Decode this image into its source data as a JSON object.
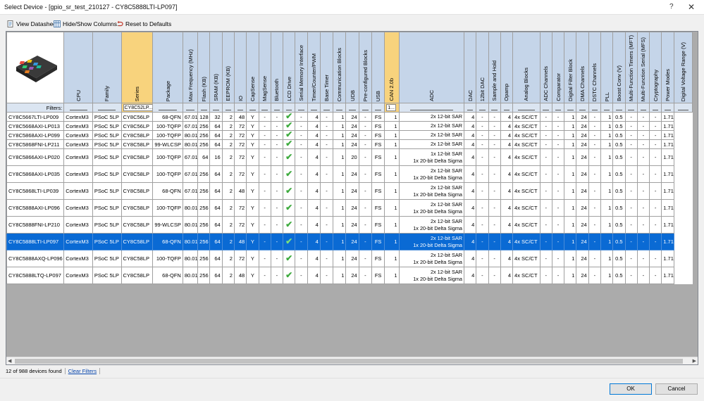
{
  "window": {
    "title": "Select Device - [gpio_sr_test_210127 - CY8C5888LTI-LP097]",
    "help": "?",
    "close": "✕"
  },
  "toolbar": {
    "view_datasheet": "View Datasheet",
    "hide_show": "Hide/Show Columns...",
    "reset": "Reset to Defaults"
  },
  "columns": [
    {
      "label": "",
      "highlight": false
    },
    {
      "label": "CPU",
      "highlight": false
    },
    {
      "label": "Family",
      "highlight": false
    },
    {
      "label": "Series",
      "highlight": true
    },
    {
      "label": "Package",
      "highlight": false
    },
    {
      "label": "Max Frequency (MHz)",
      "highlight": false
    },
    {
      "label": "Flash (KB)",
      "highlight": false
    },
    {
      "label": "SRAM (KB)",
      "highlight": false
    },
    {
      "label": "EEPROM (KB)",
      "highlight": false
    },
    {
      "label": "IO",
      "highlight": false
    },
    {
      "label": "CapSense",
      "highlight": false
    },
    {
      "label": "MagSense",
      "highlight": false
    },
    {
      "label": "Bluetooth",
      "highlight": false
    },
    {
      "label": "LCD Drive",
      "highlight": false
    },
    {
      "label": "Serial Memory Interface",
      "highlight": false
    },
    {
      "label": "Timer/Counter/PWM",
      "highlight": false
    },
    {
      "label": "Base Timer",
      "highlight": false
    },
    {
      "label": "Communication Blocks",
      "highlight": false
    },
    {
      "label": "UDB",
      "highlight": false
    },
    {
      "label": "Pre-configured Blocks",
      "highlight": false
    },
    {
      "label": "USB",
      "highlight": false
    },
    {
      "label": "CAN 2.0b",
      "highlight": true
    },
    {
      "label": "ADC",
      "highlight": false
    },
    {
      "label": "DAC",
      "highlight": false
    },
    {
      "label": "12bit DAC",
      "highlight": false
    },
    {
      "label": "Sample and Hold",
      "highlight": false
    },
    {
      "label": "Opamp",
      "highlight": false
    },
    {
      "label": "Analog Blocks",
      "highlight": false
    },
    {
      "label": "ADC Channels",
      "highlight": false
    },
    {
      "label": "Comparator",
      "highlight": false
    },
    {
      "label": "Digital Filter Block",
      "highlight": false
    },
    {
      "label": "DMA Channels",
      "highlight": false
    },
    {
      "label": "DSTC Channels",
      "highlight": false
    },
    {
      "label": "PLL",
      "highlight": false
    },
    {
      "label": "Boost Conv (V)",
      "highlight": false
    },
    {
      "label": "Multi-Function Timers (MFT)",
      "highlight": false
    },
    {
      "label": "Multi-Function Serial (MFS)",
      "highlight": false
    },
    {
      "label": "Cryptography",
      "highlight": false
    },
    {
      "label": "Power Modes",
      "highlight": false
    },
    {
      "label": "Digital Voltage Range (V)",
      "highlight": false
    }
  ],
  "filters": {
    "label": "Filters:",
    "series": "CY8C52LP...",
    "can": "1..."
  },
  "rows": [
    {
      "tall": false,
      "selected": false,
      "cells": [
        "CY8C5667LTI-LP009",
        "CortexM3",
        "PSoC 5LP",
        "CY8C56LP",
        "68-QFN",
        "67.01",
        "128",
        "32",
        "2",
        "48",
        "Y",
        "-",
        "-",
        "CHECK",
        "-",
        "4",
        "-",
        "1",
        "24",
        "-",
        "FS",
        "1",
        [
          "2x 12-bit SAR"
        ],
        "4",
        "-",
        "-",
        "4",
        "4x SC/CT",
        "-",
        "-",
        "1",
        "24",
        "-",
        "1",
        "0.5",
        "-",
        "-",
        "-",
        "1.71 -"
      ]
    },
    {
      "tall": false,
      "selected": false,
      "cells": [
        "CY8C5668AXI-LP013",
        "CortexM3",
        "PSoC 5LP",
        "CY8C56LP",
        "100-TQFP",
        "67.01",
        "256",
        "64",
        "2",
        "72",
        "Y",
        "-",
        "-",
        "CHECK",
        "-",
        "4",
        "-",
        "1",
        "24",
        "-",
        "FS",
        "1",
        [
          "2x 12-bit SAR"
        ],
        "4",
        "-",
        "-",
        "4",
        "4x SC/CT",
        "-",
        "-",
        "1",
        "24",
        "-",
        "1",
        "0.5",
        "-",
        "-",
        "-",
        "1.71 -"
      ]
    },
    {
      "tall": false,
      "selected": false,
      "cells": [
        "CY8C5868AXI-LP099",
        "CortexM3",
        "PSoC 5LP",
        "CY8C58LP",
        "100-TQFP",
        "80.01",
        "256",
        "64",
        "2",
        "72",
        "Y",
        "-",
        "-",
        "CHECK",
        "-",
        "4",
        "-",
        "1",
        "24",
        "-",
        "FS",
        "1",
        [
          "2x 12-bit SAR"
        ],
        "4",
        "-",
        "-",
        "4",
        "4x SC/CT",
        "-",
        "-",
        "1",
        "24",
        "-",
        "1",
        "0.5",
        "-",
        "-",
        "-",
        "1.71 -"
      ]
    },
    {
      "tall": false,
      "selected": false,
      "cells": [
        "CY8C5868FNI-LP211",
        "CortexM3",
        "PSoC 5LP",
        "CY8C58LP",
        "99-WLCSP",
        "80.01",
        "256",
        "64",
        "2",
        "72",
        "Y",
        "-",
        "-",
        "CHECK",
        "-",
        "4",
        "-",
        "1",
        "24",
        "-",
        "FS",
        "1",
        [
          "2x 12-bit SAR"
        ],
        "4",
        "-",
        "-",
        "4",
        "4x SC/CT",
        "-",
        "-",
        "1",
        "24",
        "-",
        "1",
        "0.5",
        "-",
        "-",
        "-",
        "1.71 -"
      ]
    },
    {
      "tall": true,
      "selected": false,
      "cells": [
        "CY8C5866AXI-LP020",
        "CortexM3",
        "PSoC 5LP",
        "CY8C58LP",
        "100-TQFP",
        "67.01",
        "64",
        "16",
        "2",
        "72",
        "Y",
        "-",
        "-",
        "CHECK",
        "-",
        "4",
        "-",
        "1",
        "20",
        "-",
        "FS",
        "1",
        [
          "1x 12-bit SAR",
          "1x 20-bit Delta Sigma"
        ],
        "4",
        "-",
        "-",
        "4",
        "4x SC/CT",
        "-",
        "-",
        "1",
        "24",
        "-",
        "1",
        "0.5",
        "-",
        "-",
        "-",
        "1.71 -"
      ]
    },
    {
      "tall": true,
      "selected": false,
      "cells": [
        "CY8C5868AXI-LP035",
        "CortexM3",
        "PSoC 5LP",
        "CY8C58LP",
        "100-TQFP",
        "67.01",
        "256",
        "64",
        "2",
        "72",
        "Y",
        "-",
        "-",
        "CHECK",
        "-",
        "4",
        "-",
        "1",
        "24",
        "-",
        "FS",
        "1",
        [
          "2x 12-bit SAR",
          "1x 20-bit Delta Sigma"
        ],
        "4",
        "-",
        "-",
        "4",
        "4x SC/CT",
        "-",
        "-",
        "1",
        "24",
        "-",
        "1",
        "0.5",
        "-",
        "-",
        "-",
        "1.71 -"
      ]
    },
    {
      "tall": true,
      "selected": false,
      "cells": [
        "CY8C5868LTI-LP039",
        "CortexM3",
        "PSoC 5LP",
        "CY8C58LP",
        "68-QFN",
        "67.01",
        "256",
        "64",
        "2",
        "48",
        "Y",
        "-",
        "-",
        "CHECK",
        "-",
        "4",
        "-",
        "1",
        "24",
        "-",
        "FS",
        "1",
        [
          "2x 12-bit SAR",
          "1x 20-bit Delta Sigma"
        ],
        "4",
        "-",
        "-",
        "4",
        "4x SC/CT",
        "-",
        "-",
        "1",
        "24",
        "-",
        "1",
        "0.5",
        "-",
        "-",
        "-",
        "1.71 -"
      ]
    },
    {
      "tall": true,
      "selected": false,
      "cells": [
        "CY8C5888AXI-LP096",
        "CortexM3",
        "PSoC 5LP",
        "CY8C58LP",
        "100-TQFP",
        "80.01",
        "256",
        "64",
        "2",
        "72",
        "Y",
        "-",
        "-",
        "CHECK",
        "-",
        "4",
        "-",
        "1",
        "24",
        "-",
        "FS",
        "1",
        [
          "2x 12-bit SAR",
          "1x 20-bit Delta Sigma"
        ],
        "4",
        "-",
        "-",
        "4",
        "4x SC/CT",
        "-",
        "-",
        "1",
        "24",
        "-",
        "1",
        "0.5",
        "-",
        "-",
        "-",
        "1.71 -"
      ]
    },
    {
      "tall": true,
      "selected": false,
      "cells": [
        "CY8C5888FNI-LP210",
        "CortexM3",
        "PSoC 5LP",
        "CY8C58LP",
        "99-WLCSP",
        "80.01",
        "256",
        "64",
        "2",
        "72",
        "Y",
        "-",
        "-",
        "CHECK",
        "-",
        "4",
        "-",
        "1",
        "24",
        "-",
        "FS",
        "1",
        [
          "2x 12-bit SAR",
          "1x 20-bit Delta Sigma"
        ],
        "4",
        "-",
        "-",
        "4",
        "4x SC/CT",
        "-",
        "-",
        "1",
        "24",
        "-",
        "1",
        "0.5",
        "-",
        "-",
        "-",
        "1.71 -"
      ]
    },
    {
      "tall": true,
      "selected": true,
      "cells": [
        "CY8C5888LTI-LP097",
        "CortexM3",
        "PSoC 5LP",
        "CY8C58LP",
        "68-QFN",
        "80.01",
        "256",
        "64",
        "2",
        "48",
        "Y",
        "-",
        "-",
        "CHECK",
        "-",
        "4",
        "-",
        "1",
        "24",
        "-",
        "FS",
        "1",
        [
          "2x 12-bit SAR",
          "1x 20-bit Delta Sigma"
        ],
        "4",
        "-",
        "-",
        "4",
        "4x SC/CT",
        "-",
        "-",
        "1",
        "24",
        "-",
        "1",
        "0.5",
        "-",
        "-",
        "-",
        "1.71 -"
      ]
    },
    {
      "tall": true,
      "selected": false,
      "cells": [
        "CY8C5888AXQ-LP096",
        "CortexM3",
        "PSoC 5LP",
        "CY8C58LP",
        "100-TQFP",
        "80.01",
        "256",
        "64",
        "2",
        "72",
        "Y",
        "-",
        "-",
        "CHECK",
        "-",
        "4",
        "-",
        "1",
        "24",
        "-",
        "FS",
        "1",
        [
          "2x 12-bit SAR",
          "1x 20-bit Delta Sigma"
        ],
        "4",
        "-",
        "-",
        "4",
        "4x SC/CT",
        "-",
        "-",
        "1",
        "24",
        "-",
        "1",
        "0.5",
        "-",
        "-",
        "-",
        "1.71 -"
      ]
    },
    {
      "tall": true,
      "selected": false,
      "cells": [
        "CY8C5888LTQ-LP097",
        "CortexM3",
        "PSoC 5LP",
        "CY8C58LP",
        "68-QFN",
        "80.01",
        "256",
        "64",
        "2",
        "48",
        "Y",
        "-",
        "-",
        "CHECK",
        "-",
        "4",
        "-",
        "1",
        "24",
        "-",
        "FS",
        "1",
        [
          "2x 12-bit SAR",
          "1x 20-bit Delta Sigma"
        ],
        "4",
        "-",
        "-",
        "4",
        "4x SC/CT",
        "-",
        "-",
        "1",
        "24",
        "-",
        "1",
        "0.5",
        "-",
        "-",
        "-",
        "1.71 -"
      ]
    }
  ],
  "status": {
    "count": "12 of 988 devices found",
    "clear": "Clear Filters"
  },
  "buttons": {
    "ok": "OK",
    "cancel": "Cancel"
  },
  "colors": {
    "header": "#c5d5e9",
    "highlight": "#f8d37d",
    "selected_row": "#0a6ad4",
    "check": "#3fab3f"
  }
}
